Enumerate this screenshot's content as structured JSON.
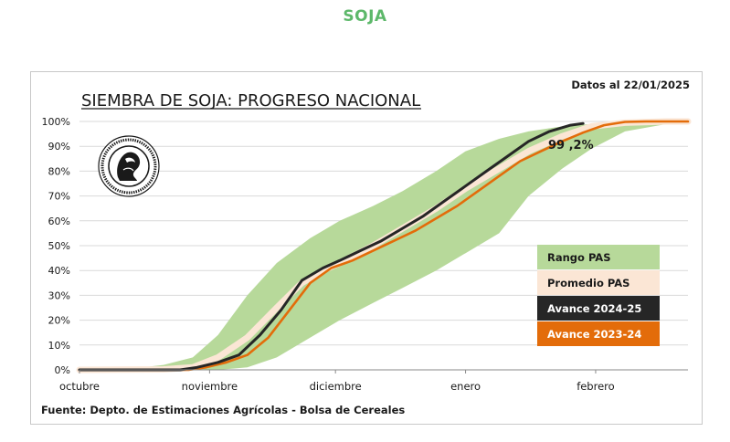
{
  "heading": "SOJA",
  "chart_data": {
    "type": "area",
    "title": "SIEMBRA DE SOJA: PROGRESO NACIONAL",
    "date_note": "Datos al 22/01/2025",
    "source": "Fuente: Depto. de Estimaciones Agrícolas - Bolsa de Cereales",
    "annotation": "99 ,2%",
    "annotation_value": 99.2,
    "x_unit": "days since 1 October",
    "x_categories": [
      "octubre",
      "noviembre",
      "diciembre",
      "enero",
      "febrero"
    ],
    "x_category_days": [
      0,
      31,
      61,
      92,
      123
    ],
    "xlim": [
      0,
      145
    ],
    "ylim": [
      0,
      100
    ],
    "y_ticks": [
      "0%",
      "10%",
      "20%",
      "30%",
      "40%",
      "50%",
      "60%",
      "70%",
      "80%",
      "90%",
      "100%"
    ],
    "legend": {
      "rango": "Rango PAS",
      "promedio": "Promedio PAS",
      "avance_2425": "Avance 2024-25",
      "avance_2324": "Avance 2023-24"
    },
    "colors": {
      "rango": "#b7d99a",
      "promedio": "#fbe6d5",
      "avance_2425": "#262626",
      "avance_2324": "#e36c0a",
      "heading": "#5db86a"
    },
    "series": [
      {
        "name": "Rango PAS",
        "kind": "band",
        "x": [
          0,
          15,
          20,
          27,
          33,
          40,
          47,
          55,
          62,
          70,
          77,
          85,
          92,
          100,
          107,
          115,
          122,
          130,
          140,
          145
        ],
        "upper": [
          0,
          1,
          2,
          5,
          14,
          30,
          43,
          53,
          60,
          66,
          72,
          80,
          88,
          93,
          96,
          98,
          99,
          100,
          100,
          100
        ],
        "lower": [
          0,
          0,
          0,
          0,
          0,
          1,
          5,
          13,
          20,
          27,
          33,
          40,
          47,
          55,
          70,
          81,
          89,
          96,
          99,
          100
        ]
      },
      {
        "name": "Promedio PAS",
        "kind": "line",
        "x": [
          0,
          20,
          27,
          33,
          40,
          47,
          53,
          58,
          62,
          70,
          77,
          85,
          92,
          100,
          107,
          115,
          122,
          130,
          140,
          145
        ],
        "y": [
          0,
          0.2,
          1,
          5,
          13,
          25,
          35,
          40,
          43,
          50,
          57,
          65,
          73,
          81,
          88,
          94,
          98,
          99.5,
          100,
          100
        ]
      },
      {
        "name": "Avance 2024-25",
        "kind": "line",
        "x": [
          0,
          24,
          28,
          33,
          38,
          43,
          48,
          53,
          58,
          62,
          67,
          72,
          77,
          82,
          87,
          92,
          97,
          102,
          107,
          112,
          117,
          120
        ],
        "y": [
          0,
          0,
          1,
          3,
          6,
          14,
          24,
          36,
          41,
          44,
          48,
          52,
          57,
          62,
          68,
          74,
          80,
          86,
          92,
          96,
          98.5,
          99.2
        ]
      },
      {
        "name": "Avance 2023-24",
        "kind": "line",
        "x": [
          0,
          26,
          30,
          35,
          40,
          45,
          50,
          55,
          60,
          65,
          70,
          75,
          80,
          85,
          90,
          95,
          100,
          105,
          110,
          115,
          120,
          125,
          130,
          135,
          145
        ],
        "y": [
          0,
          0,
          1,
          3,
          6,
          13,
          24,
          35,
          41,
          44,
          48,
          52,
          56,
          61,
          66,
          72,
          78,
          84,
          88,
          92,
          95.5,
          98.5,
          99.8,
          100,
          100
        ]
      }
    ]
  }
}
